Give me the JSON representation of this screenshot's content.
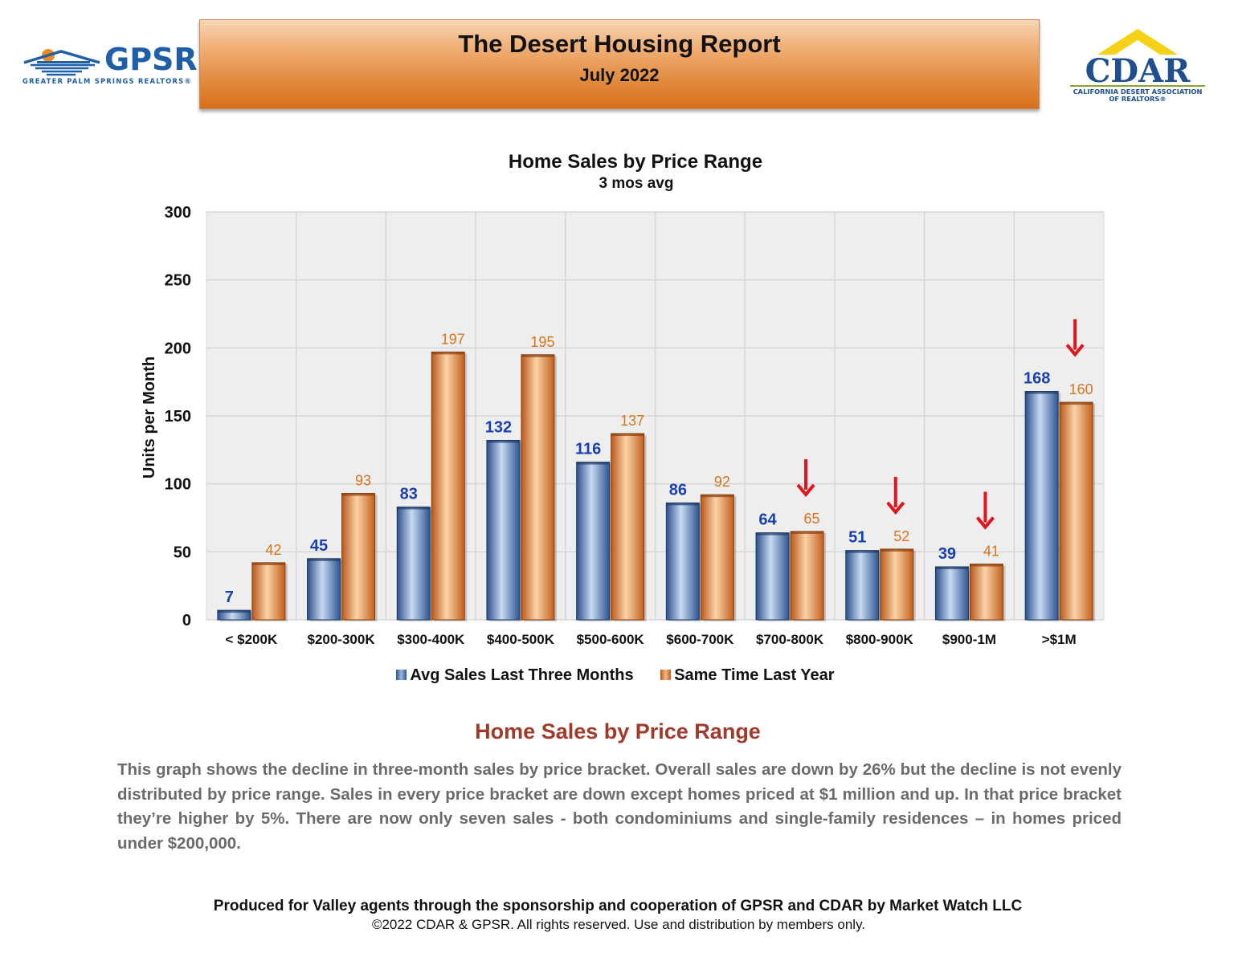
{
  "header": {
    "title": "The Desert Housing Report",
    "subtitle": "July 2022"
  },
  "logos": {
    "left": {
      "name": "GPSR",
      "tagline": "GREATER PALM SPRINGS REALTORS®"
    },
    "right": {
      "name": "CDAR",
      "tagline_line1": "CALIFORNIA DESERT ASSOCIATION",
      "tagline_line2": "OF REALTORS®"
    }
  },
  "chart_data": {
    "type": "bar",
    "title": "Home Sales by Price Range",
    "subtitle": "3 mos avg",
    "xlabel": "",
    "ylabel": "Units per Month",
    "ylim": [
      0,
      300
    ],
    "yticks": [
      0,
      50,
      100,
      150,
      200,
      250,
      300
    ],
    "grid": true,
    "legend": "bottom",
    "categories": [
      "< $200K",
      "$200-300K",
      "$300-400K",
      "$400-500K",
      "$500-600K",
      "$600-700K",
      "$700-800K",
      "$800-900K",
      "$900-1M",
      ">$1M"
    ],
    "series": [
      {
        "name": "Avg Sales Last Three Months",
        "color": "#3e6cad",
        "label_color": "#1a3fb0",
        "values": [
          7,
          45,
          83,
          132,
          116,
          86,
          64,
          51,
          39,
          168
        ]
      },
      {
        "name": "Same Time Last Year",
        "color": "#e07f2a",
        "label_color": "#d8741c",
        "values": [
          42,
          93,
          197,
          195,
          137,
          92,
          65,
          52,
          41,
          160
        ]
      }
    ],
    "annotations": {
      "down_arrows_on_categories": [
        "$700-800K",
        "$800-900K",
        "$900-1M",
        ">$1M"
      ],
      "arrow_color": "#e0141c"
    }
  },
  "text": {
    "section_heading": "Home Sales by Price Range",
    "body": "This graph shows the decline in three-month sales by price bracket. Overall sales are down by 26% but the decline is not evenly distributed by price range. Sales in every price bracket are down except homes priced at $1 million and up. In that price bracket they’re higher by 5%. There are now only seven sales - both condominiums and single-family residences – in homes priced under $200,000."
  },
  "footer": {
    "main": "Produced for Valley agents through the sponsorship and cooperation of GPSR and CDAR by Market Watch LLC",
    "copyright": "©2022 CDAR & GPSR.  All rights reserved.  Use and distribution by members only."
  }
}
